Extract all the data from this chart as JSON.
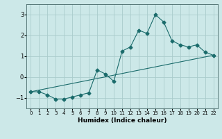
{
  "xlabel": "Humidex (Indice chaleur)",
  "ylabel": "",
  "background_color": "#cce8e8",
  "grid_color": "#aacccc",
  "line_color": "#1a6b6b",
  "xlim": [
    -0.5,
    22.5
  ],
  "ylim": [
    -1.5,
    3.5
  ],
  "yticks": [
    -1,
    0,
    1,
    2,
    3
  ],
  "xticks": [
    0,
    1,
    2,
    3,
    4,
    5,
    6,
    7,
    8,
    9,
    10,
    11,
    12,
    13,
    14,
    15,
    16,
    17,
    18,
    19,
    20,
    21,
    22
  ],
  "upper_line_x": [
    0,
    1,
    2,
    3,
    4,
    5,
    6,
    7,
    8,
    9,
    10,
    11,
    12,
    13,
    14,
    15,
    16,
    17,
    18,
    19,
    20,
    21,
    22
  ],
  "upper_line_y": [
    -0.7,
    -0.7,
    -0.85,
    -1.05,
    -1.05,
    -0.95,
    -0.85,
    -0.75,
    0.35,
    0.15,
    -0.2,
    1.25,
    1.45,
    2.25,
    2.1,
    3.0,
    2.65,
    1.75,
    1.55,
    1.45,
    1.55,
    1.2,
    1.05
  ],
  "lower_line_x": [
    0,
    22
  ],
  "lower_line_y": [
    -0.7,
    1.05
  ],
  "marker_style": "D",
  "marker_size": 2.5,
  "line_width": 0.8
}
